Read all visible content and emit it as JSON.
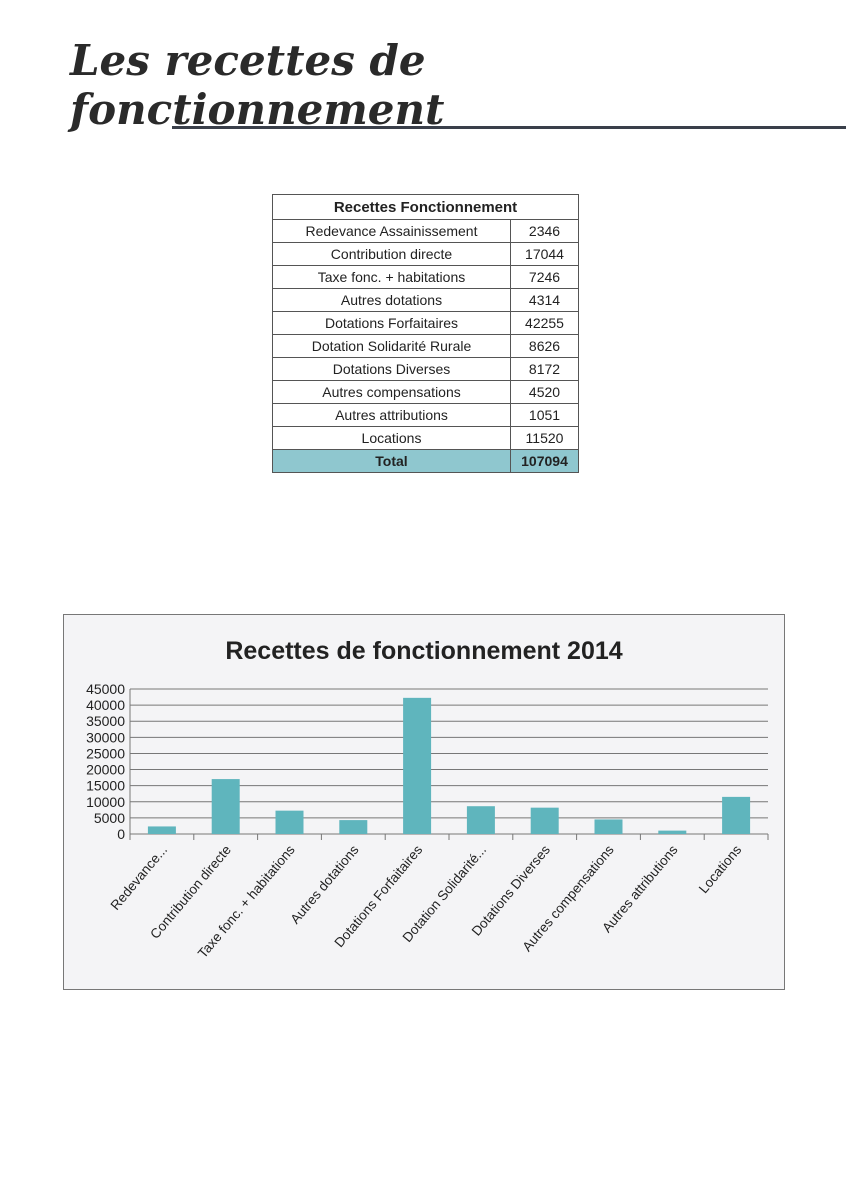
{
  "page_title": "Les recettes de fonctionnement",
  "table": {
    "header": "Recettes Fonctionnement",
    "rows": [
      {
        "label": "Redevance Assainissement",
        "value": "2346"
      },
      {
        "label": "Contribution directe",
        "value": "17044"
      },
      {
        "label": "Taxe fonc. + habitations",
        "value": "7246"
      },
      {
        "label": "Autres dotations",
        "value": "4314"
      },
      {
        "label": "Dotations Forfaitaires",
        "value": "42255"
      },
      {
        "label": "Dotation Solidarité Rurale",
        "value": "8626"
      },
      {
        "label": "Dotations Diverses",
        "value": "8172"
      },
      {
        "label": "Autres compensations",
        "value": "4520"
      },
      {
        "label": "Autres attributions",
        "value": "1051"
      },
      {
        "label": "Locations",
        "value": "11520"
      }
    ],
    "total_label": "Total",
    "total_value": "107094",
    "total_color": "#8fc7cf"
  },
  "chart_data": {
    "type": "bar",
    "title": "Recettes de fonctionnement 2014",
    "categories": [
      "Redevance...",
      "Contribution directe",
      "Taxe fonc. + habitations",
      "Autres dotations",
      "Dotations Forfaitaires",
      "Dotation Solidarité...",
      "Dotations Diverses",
      "Autres compensations",
      "Autres attributions",
      "Locations"
    ],
    "values": [
      2346,
      17044,
      7246,
      4314,
      42255,
      8626,
      8172,
      4520,
      1051,
      11520
    ],
    "ylim": [
      0,
      45000
    ],
    "yticks": [
      0,
      5000,
      10000,
      15000,
      20000,
      25000,
      30000,
      35000,
      40000,
      45000
    ],
    "xlabel": "",
    "ylabel": "",
    "grid": true,
    "legend": "none",
    "bar_color": "#5fb5bd"
  }
}
